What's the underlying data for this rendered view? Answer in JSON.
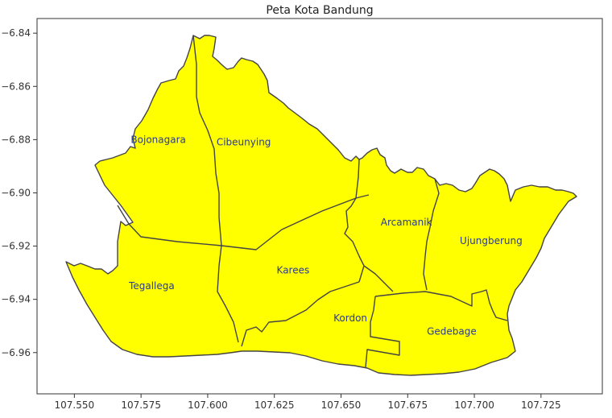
{
  "chart_data": {
    "type": "map",
    "title": "Peta Kota Bandung",
    "xlim": [
      107.536,
      107.748
    ],
    "ylim": [
      -6.9755,
      -6.8345
    ],
    "x_ticks": [
      107.55,
      107.575,
      107.6,
      107.625,
      107.65,
      107.675,
      107.7,
      107.725
    ],
    "x_tick_labels": [
      "107.550",
      "107.575",
      "107.600",
      "107.625",
      "107.650",
      "107.675",
      "107.700",
      "107.725"
    ],
    "y_ticks": [
      -6.84,
      -6.86,
      -6.88,
      -6.9,
      -6.92,
      -6.94,
      -6.96
    ],
    "y_tick_labels": [
      "−6.84",
      "−6.86",
      "−6.88",
      "−6.90",
      "−6.92",
      "−6.94",
      "−6.96"
    ],
    "fill_color": "#ffff00",
    "edge_color": "#444444",
    "regions": [
      {
        "name": "Bojonagara",
        "label_x": 107.5815,
        "label_y": -6.88
      },
      {
        "name": "Cibeunying",
        "label_x": 107.6135,
        "label_y": -6.881
      },
      {
        "name": "Arcamanik",
        "label_x": 107.6745,
        "label_y": -6.911
      },
      {
        "name": "Ujungberung",
        "label_x": 107.7063,
        "label_y": -6.918
      },
      {
        "name": "Karees",
        "label_x": 107.632,
        "label_y": -6.929
      },
      {
        "name": "Tegallega",
        "label_x": 107.579,
        "label_y": -6.935
      },
      {
        "name": "Kordon",
        "label_x": 107.6535,
        "label_y": -6.947
      },
      {
        "name": "Gedebage",
        "label_x": 107.6915,
        "label_y": -6.952
      }
    ]
  }
}
